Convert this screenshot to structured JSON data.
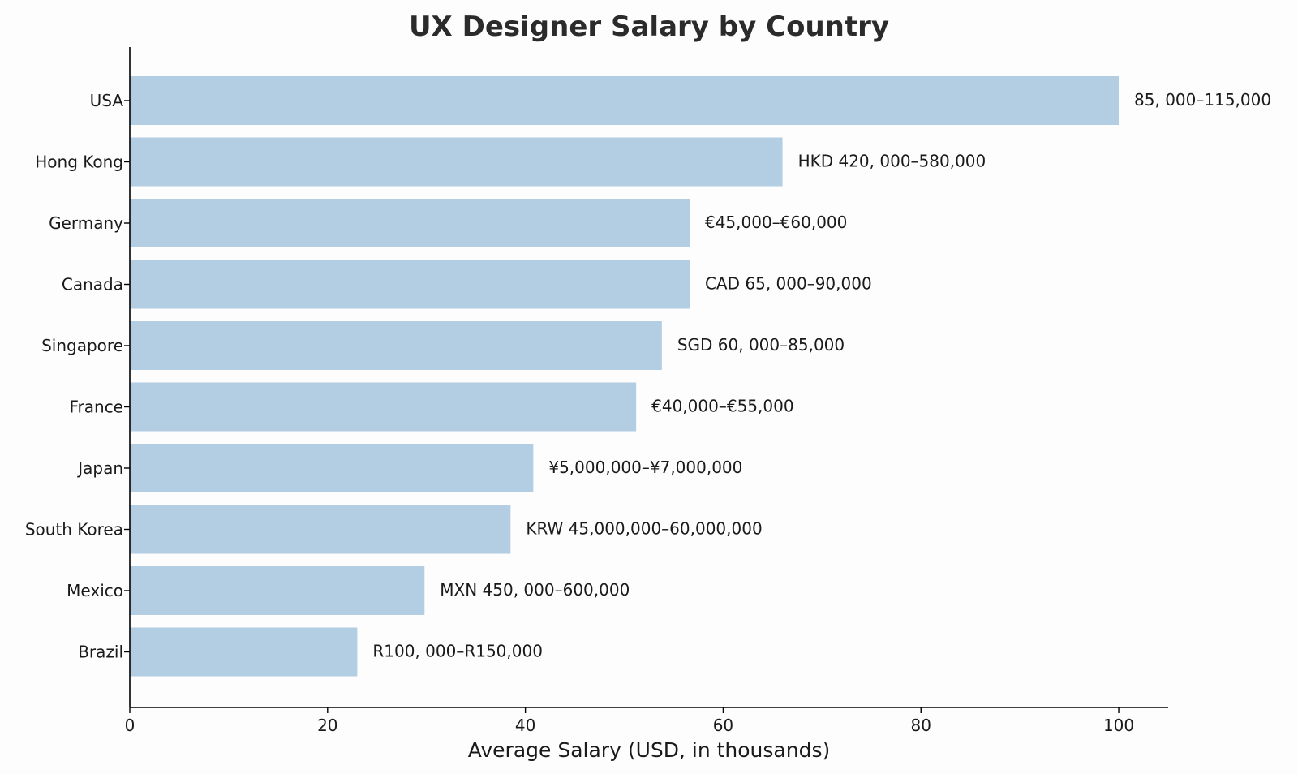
{
  "chart_data": {
    "type": "bar",
    "orientation": "horizontal",
    "title": "UX Designer Salary by Country",
    "xlabel": "Average Salary (USD, in thousands)",
    "ylabel": "",
    "xlim": [
      0,
      105
    ],
    "xticks": [
      0,
      20,
      40,
      60,
      80,
      100
    ],
    "grid": false,
    "bar_color": "#b3cde3",
    "categories": [
      "USA",
      "Hong Kong",
      "Germany",
      "Canada",
      "Singapore",
      "France",
      "Japan",
      "South Korea",
      "Mexico",
      "Brazil"
    ],
    "values": [
      100,
      66,
      56.6,
      56.6,
      53.8,
      51.2,
      40.8,
      38.5,
      29.8,
      23
    ],
    "data_labels": [
      "85, 000–115,000",
      "HKD 420, 000–580,000",
      "€45,000–€60,000",
      "CAD 65, 000–90,000",
      "SGD 60, 000–85,000",
      "€40,000–€55,000",
      "¥5,000,000–¥7,000,000",
      "KRW 45,000,000–60,000,000",
      "MXN 450, 000–600,000",
      "R100, 000–R150,000"
    ]
  }
}
